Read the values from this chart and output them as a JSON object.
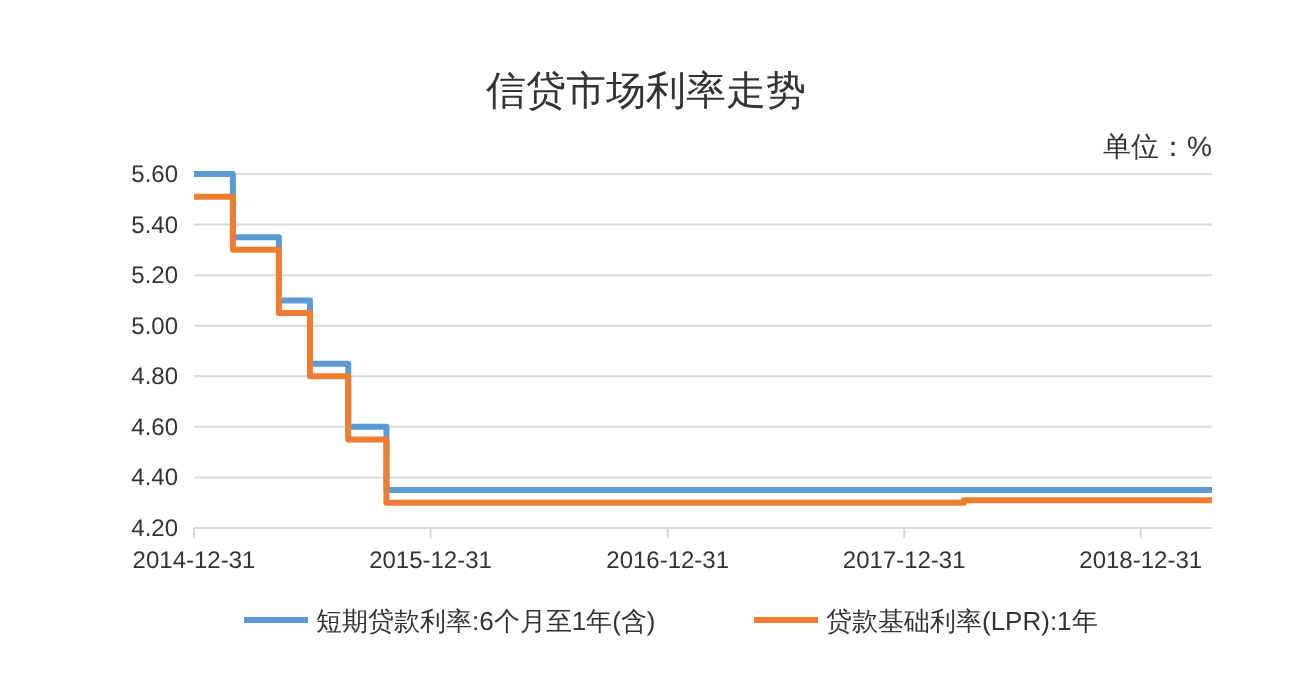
{
  "chart_data": {
    "type": "step",
    "title": "信贷市场利率走势",
    "annotations": [
      "单位：%"
    ],
    "xlim": [
      "2014-12-31",
      "2019-04-20"
    ],
    "xticks": [
      {
        "value": "2014-12-31",
        "label": "2014-12-31"
      },
      {
        "value": "2015-12-31",
        "label": "2015-12-31"
      },
      {
        "value": "2016-12-31",
        "label": "2016-12-31"
      },
      {
        "value": "2017-12-31",
        "label": "2017-12-31"
      },
      {
        "value": "2018-12-31",
        "label": "2018-12-31"
      }
    ],
    "ylim": [
      4.2,
      5.6
    ],
    "yticks": [
      {
        "value": 4.2,
        "label": "4.20"
      },
      {
        "value": 4.4,
        "label": "4.40"
      },
      {
        "value": 4.6,
        "label": "4.60"
      },
      {
        "value": 4.8,
        "label": "4.80"
      },
      {
        "value": 5.0,
        "label": "5.00"
      },
      {
        "value": 5.2,
        "label": "5.20"
      },
      {
        "value": 5.4,
        "label": "5.40"
      },
      {
        "value": 5.6,
        "label": "5.60"
      }
    ],
    "grid": "y",
    "legend": "bottom",
    "line_style": "solid",
    "marker": "none",
    "series": [
      {
        "name": "短期贷款利率:6个月至1年(含)",
        "color": "#5b9bd5",
        "x": [
          "2014-12-31",
          "2015-03-01",
          "2015-05-11",
          "2015-06-28",
          "2015-08-26",
          "2015-10-24",
          "2019-04-20"
        ],
        "values": [
          5.6,
          5.35,
          5.1,
          4.85,
          4.6,
          4.35,
          4.35
        ]
      },
      {
        "name": "贷款基础利率(LPR):1年",
        "color": "#ed7d31",
        "x": [
          "2014-12-31",
          "2015-03-01",
          "2015-05-11",
          "2015-06-28",
          "2015-08-26",
          "2015-10-24",
          "2018-04-02",
          "2019-04-20"
        ],
        "values": [
          5.51,
          5.3,
          5.05,
          4.8,
          4.55,
          4.3,
          4.31,
          4.31
        ]
      }
    ]
  }
}
